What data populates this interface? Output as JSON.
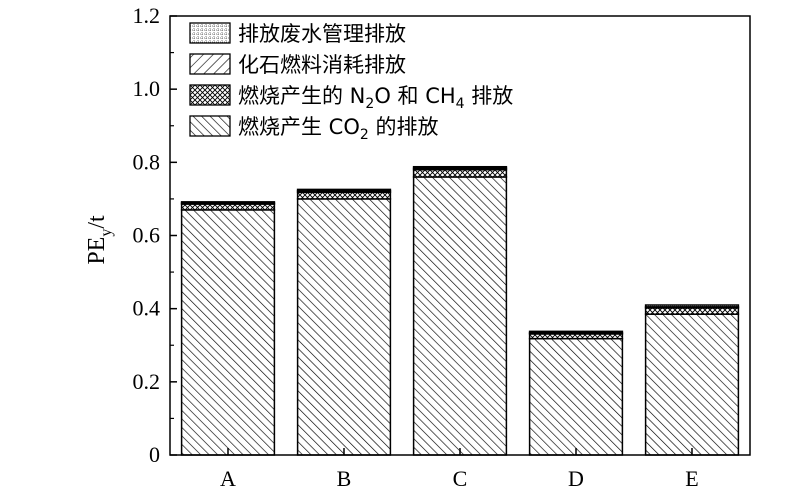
{
  "chart_data": {
    "type": "bar",
    "stacked": true,
    "categories": [
      "A",
      "B",
      "C",
      "D",
      "E"
    ],
    "ylabel_main": "PE",
    "ylabel_sub": "y",
    "ylabel_unit": "/t",
    "ylim": [
      0,
      1.2
    ],
    "yticks": [
      "0",
      "0.2",
      "0.4",
      "0.6",
      "0.8",
      "1.0",
      "1.2"
    ],
    "grid": false,
    "legend_position": "top-left",
    "series": [
      {
        "name": "燃烧产生 CO2 的排放",
        "pattern": "diag-fine",
        "values": [
          0.67,
          0.7,
          0.76,
          0.318,
          0.385
        ]
      },
      {
        "name": "燃烧产生的 N2O 和 CH4 排放",
        "pattern": "crosshatch",
        "values": [
          0.016,
          0.018,
          0.02,
          0.013,
          0.017
        ]
      },
      {
        "name": "化石燃料消耗排放",
        "pattern": "diag-back",
        "values": [
          0.003,
          0.004,
          0.004,
          0.003,
          0.003
        ]
      },
      {
        "name": "排放废水管理排放",
        "pattern": "dots",
        "values": [
          0.003,
          0.004,
          0.004,
          0.004,
          0.005
        ]
      }
    ],
    "legend": [
      {
        "series": 3,
        "label": "排放废水管理排放"
      },
      {
        "series": 2,
        "label": "化石燃料消耗排放"
      },
      {
        "series": 1,
        "pre": "燃烧产生的 N",
        "sub": "2",
        "mid": "O 和 CH",
        "sub2": "4",
        "post": " 排放"
      },
      {
        "series": 0,
        "pre": "燃烧产生 CO",
        "sub": "2",
        "post": " 的排放"
      }
    ]
  }
}
